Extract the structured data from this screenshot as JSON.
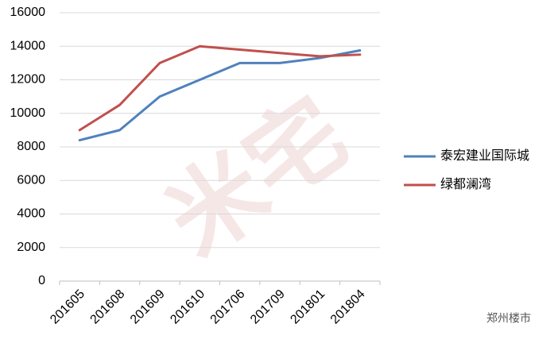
{
  "chart_data": {
    "type": "line",
    "categories": [
      "201605",
      "201608",
      "201609",
      "201610",
      "201706",
      "201709",
      "201801",
      "201804"
    ],
    "series": [
      {
        "name": "泰宏建业国际城",
        "color": "#4f81bd",
        "values": [
          8400,
          9000,
          11000,
          12000,
          13000,
          13000,
          13300,
          13750
        ]
      },
      {
        "name": "绿都澜湾",
        "color": "#c0504d",
        "values": [
          9000,
          10500,
          13000,
          14000,
          13800,
          13600,
          13400,
          13500
        ]
      }
    ],
    "ylim": [
      0,
      16000
    ],
    "yticks": [
      0,
      2000,
      4000,
      6000,
      8000,
      10000,
      12000,
      14000,
      16000
    ],
    "grid": true,
    "legend": "right",
    "annotation": "郑州楼市"
  }
}
